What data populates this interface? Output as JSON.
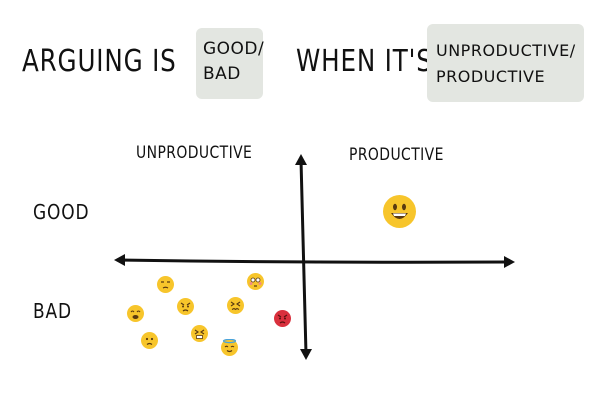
{
  "title": {
    "prefix": "ARGUING IS",
    "option1_line1": "GOOD/",
    "option1_line2": "BAD",
    "middle": "WHEN IT'S",
    "option2_line1": "UNPRODUCTIVE/",
    "option2_line2": "PRODUCTIVE"
  },
  "axes": {
    "left_column": "UNPRODUCTIVE",
    "right_column": "PRODUCTIVE",
    "top_row": "GOOD",
    "bottom_row": "BAD"
  },
  "emojis": [
    {
      "name": "grinning-face-icon",
      "quadrant": "good-productive"
    },
    {
      "name": "unamused-face-icon",
      "quadrant": "bad-unproductive"
    },
    {
      "name": "flushed-face-icon",
      "quadrant": "bad-unproductive"
    },
    {
      "name": "angry-face-icon",
      "quadrant": "bad-unproductive"
    },
    {
      "name": "confounded-face-icon",
      "quadrant": "bad-unproductive"
    },
    {
      "name": "weary-face-icon",
      "quadrant": "bad-unproductive"
    },
    {
      "name": "pouting-face-icon",
      "quadrant": "bad-unproductive"
    },
    {
      "name": "persevering-face-icon",
      "quadrant": "bad-unproductive"
    },
    {
      "name": "frowning-face-icon",
      "quadrant": "bad-unproductive"
    },
    {
      "name": "halo-face-icon",
      "quadrant": "bad-unproductive"
    }
  ],
  "colors": {
    "chip_background": "#e3e6e1",
    "ink": "#111111",
    "emoji_yellow": "#f7c52b",
    "emoji_red": "#d9303d"
  }
}
